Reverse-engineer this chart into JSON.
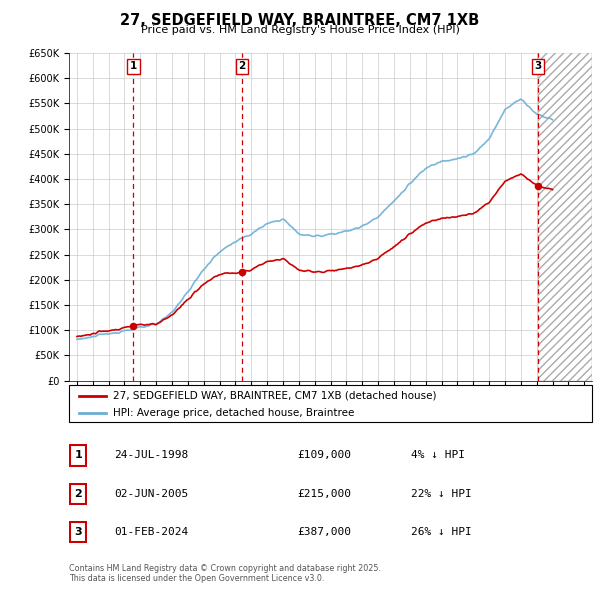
{
  "title": "27, SEDGEFIELD WAY, BRAINTREE, CM7 1XB",
  "subtitle": "Price paid vs. HM Land Registry's House Price Index (HPI)",
  "ylabel_ticks": [
    "£0",
    "£50K",
    "£100K",
    "£150K",
    "£200K",
    "£250K",
    "£300K",
    "£350K",
    "£400K",
    "£450K",
    "£500K",
    "£550K",
    "£600K",
    "£650K"
  ],
  "ytick_values": [
    0,
    50000,
    100000,
    150000,
    200000,
    250000,
    300000,
    350000,
    400000,
    450000,
    500000,
    550000,
    600000,
    650000
  ],
  "xlim": [
    1994.5,
    2027.5
  ],
  "ylim": [
    0,
    650000
  ],
  "sale_dates": [
    1998.56,
    2005.42,
    2024.08
  ],
  "sale_prices": [
    109000,
    215000,
    387000
  ],
  "sale_numbers": [
    "1",
    "2",
    "3"
  ],
  "vline_color": "#cc0000",
  "hpi_color": "#6baed6",
  "price_color": "#cc0000",
  "grid_color": "#cccccc",
  "bg_color": "#ffffff",
  "legend_label_price": "27, SEDGEFIELD WAY, BRAINTREE, CM7 1XB (detached house)",
  "legend_label_hpi": "HPI: Average price, detached house, Braintree",
  "table_rows": [
    {
      "num": "1",
      "date": "24-JUL-1998",
      "price": "£109,000",
      "hpi": "4% ↓ HPI"
    },
    {
      "num": "2",
      "date": "02-JUN-2005",
      "price": "£215,000",
      "hpi": "22% ↓ HPI"
    },
    {
      "num": "3",
      "date": "01-FEB-2024",
      "price": "£387,000",
      "hpi": "26% ↓ HPI"
    }
  ],
  "footnote": "Contains HM Land Registry data © Crown copyright and database right 2025.\nThis data is licensed under the Open Government Licence v3.0.",
  "hatched_region_start": 2024.08,
  "hatched_region_end": 2027.5
}
